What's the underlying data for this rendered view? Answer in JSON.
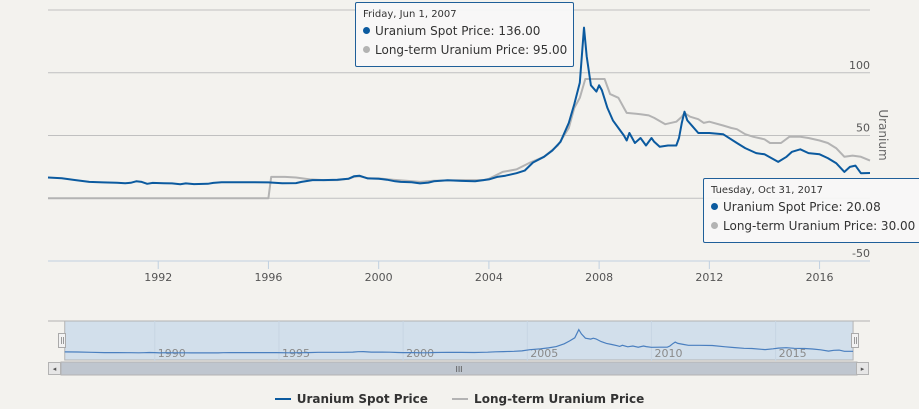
{
  "chart_data": {
    "type": "line",
    "title": "",
    "ylabel": "Uranium",
    "xlabel": "",
    "ylim": [
      -50,
      150
    ],
    "xlim": [
      1988.0,
      2017.83
    ],
    "y_ticks": [
      {
        "value": 100,
        "label": "100"
      },
      {
        "value": 50,
        "label": "50"
      },
      {
        "value": -50,
        "label": "-50"
      }
    ],
    "y_gridlines": [
      150,
      100,
      50,
      0,
      -50
    ],
    "x_ticks": [
      {
        "value": 1992,
        "label": "1992"
      },
      {
        "value": 1996,
        "label": "1996"
      },
      {
        "value": 2000,
        "label": "2000"
      },
      {
        "value": 2004,
        "label": "2004"
      },
      {
        "value": 2008,
        "label": "2008"
      },
      {
        "value": 2012,
        "label": "2012"
      },
      {
        "value": 2016,
        "label": "2016"
      }
    ],
    "grid": true,
    "legend": "bottom-center",
    "series": [
      {
        "name": "Uranium Spot Price",
        "color": "#0b5a9f",
        "points": [
          [
            1988.0,
            16.5
          ],
          [
            1988.5,
            16.0
          ],
          [
            1989.0,
            14.5
          ],
          [
            1989.5,
            13.0
          ],
          [
            1990.0,
            12.6
          ],
          [
            1990.5,
            12.3
          ],
          [
            1990.8,
            12.0
          ],
          [
            1991.0,
            12.3
          ],
          [
            1991.2,
            13.5
          ],
          [
            1991.4,
            13.0
          ],
          [
            1991.6,
            11.5
          ],
          [
            1991.8,
            12.2
          ],
          [
            1992.2,
            12.0
          ],
          [
            1992.5,
            11.8
          ],
          [
            1992.8,
            11.2
          ],
          [
            1993.0,
            11.8
          ],
          [
            1993.3,
            11.3
          ],
          [
            1993.8,
            11.5
          ],
          [
            1994.0,
            12.2
          ],
          [
            1994.3,
            12.8
          ],
          [
            1995.0,
            12.8
          ],
          [
            1995.5,
            12.7
          ],
          [
            1996.0,
            12.6
          ],
          [
            1996.5,
            12.0
          ],
          [
            1997.0,
            12.1
          ],
          [
            1997.2,
            13.0
          ],
          [
            1997.6,
            14.5
          ],
          [
            1998.0,
            14.5
          ],
          [
            1998.5,
            14.7
          ],
          [
            1998.9,
            15.5
          ],
          [
            1999.1,
            17.5
          ],
          [
            1999.3,
            18.0
          ],
          [
            1999.6,
            15.8
          ],
          [
            2000.0,
            15.5
          ],
          [
            2000.3,
            14.8
          ],
          [
            2000.6,
            13.5
          ],
          [
            2000.8,
            13.0
          ],
          [
            2001.2,
            12.8
          ],
          [
            2001.5,
            11.8
          ],
          [
            2001.8,
            12.5
          ],
          [
            2002.0,
            13.5
          ],
          [
            2002.5,
            14.3
          ],
          [
            2003.0,
            13.8
          ],
          [
            2003.5,
            13.5
          ],
          [
            2003.8,
            14.5
          ],
          [
            2004.0,
            15.0
          ],
          [
            2004.3,
            17.0
          ],
          [
            2004.6,
            18.0
          ],
          [
            2005.0,
            20.0
          ],
          [
            2005.3,
            22.0
          ],
          [
            2005.6,
            28.5
          ],
          [
            2006.0,
            33.0
          ],
          [
            2006.3,
            38.0
          ],
          [
            2006.6,
            45.0
          ],
          [
            2006.9,
            60.0
          ],
          [
            2007.1,
            75.0
          ],
          [
            2007.3,
            92.0
          ],
          [
            2007.45,
            136.0
          ],
          [
            2007.55,
            113.0
          ],
          [
            2007.7,
            90.0
          ],
          [
            2007.9,
            85.0
          ],
          [
            2008.0,
            90.0
          ],
          [
            2008.1,
            86.0
          ],
          [
            2008.3,
            72.0
          ],
          [
            2008.5,
            62.0
          ],
          [
            2008.7,
            56.0
          ],
          [
            2008.9,
            50.0
          ],
          [
            2009.0,
            46.0
          ],
          [
            2009.1,
            52.0
          ],
          [
            2009.3,
            44.0
          ],
          [
            2009.5,
            48.0
          ],
          [
            2009.7,
            42.0
          ],
          [
            2009.9,
            48.0
          ],
          [
            2010.0,
            45.0
          ],
          [
            2010.2,
            41.0
          ],
          [
            2010.5,
            42.0
          ],
          [
            2010.8,
            42.0
          ],
          [
            2010.9,
            48.0
          ],
          [
            2011.0,
            60.0
          ],
          [
            2011.1,
            69.0
          ],
          [
            2011.2,
            62.0
          ],
          [
            2011.4,
            57.0
          ],
          [
            2011.6,
            52.0
          ],
          [
            2012.0,
            52.0
          ],
          [
            2012.5,
            51.0
          ],
          [
            2013.0,
            44.0
          ],
          [
            2013.3,
            40.0
          ],
          [
            2013.7,
            36.0
          ],
          [
            2014.0,
            35.0
          ],
          [
            2014.5,
            29.0
          ],
          [
            2014.8,
            33.0
          ],
          [
            2015.0,
            37.0
          ],
          [
            2015.3,
            39.0
          ],
          [
            2015.6,
            36.0
          ],
          [
            2016.0,
            35.0
          ],
          [
            2016.3,
            32.0
          ],
          [
            2016.6,
            28.0
          ],
          [
            2016.9,
            21.0
          ],
          [
            2017.1,
            25.0
          ],
          [
            2017.3,
            26.0
          ],
          [
            2017.5,
            20.0
          ],
          [
            2017.83,
            20.08
          ]
        ]
      },
      {
        "name": "Long-term Uranium Price",
        "color": "#b3b3b3",
        "points": [
          [
            1988.0,
            0.0
          ],
          [
            1996.0,
            0.0
          ],
          [
            1996.1,
            17.0
          ],
          [
            1996.6,
            17.0
          ],
          [
            1997.0,
            16.5
          ],
          [
            1997.5,
            15.0
          ],
          [
            1998.0,
            14.5
          ],
          [
            1998.5,
            14.5
          ],
          [
            1998.9,
            15.5
          ],
          [
            1999.1,
            17.0
          ],
          [
            1999.3,
            17.5
          ],
          [
            1999.6,
            16.0
          ],
          [
            2000.0,
            15.8
          ],
          [
            2000.5,
            14.8
          ],
          [
            2001.0,
            14.0
          ],
          [
            2001.5,
            13.0
          ],
          [
            2002.0,
            14.0
          ],
          [
            2003.0,
            14.5
          ],
          [
            2003.8,
            14.5
          ],
          [
            2004.0,
            15.5
          ],
          [
            2004.5,
            21.0
          ],
          [
            2005.0,
            23.0
          ],
          [
            2005.5,
            28.5
          ],
          [
            2006.0,
            33.0
          ],
          [
            2006.5,
            42.0
          ],
          [
            2006.9,
            56.0
          ],
          [
            2007.1,
            72.0
          ],
          [
            2007.3,
            80.0
          ],
          [
            2007.5,
            95.0
          ],
          [
            2008.2,
            95.0
          ],
          [
            2008.4,
            83.0
          ],
          [
            2008.7,
            80.0
          ],
          [
            2008.9,
            72.0
          ],
          [
            2009.0,
            68.0
          ],
          [
            2009.5,
            67.0
          ],
          [
            2009.8,
            66.0
          ],
          [
            2010.0,
            64.0
          ],
          [
            2010.4,
            59.0
          ],
          [
            2010.8,
            61.0
          ],
          [
            2011.0,
            65.0
          ],
          [
            2011.1,
            68.0
          ],
          [
            2011.3,
            65.0
          ],
          [
            2011.6,
            63.0
          ],
          [
            2011.8,
            60.0
          ],
          [
            2012.0,
            61.0
          ],
          [
            2012.5,
            58.0
          ],
          [
            2012.8,
            56.0
          ],
          [
            2013.0,
            55.0
          ],
          [
            2013.3,
            51.0
          ],
          [
            2013.6,
            49.0
          ],
          [
            2014.0,
            47.0
          ],
          [
            2014.2,
            44.0
          ],
          [
            2014.6,
            44.0
          ],
          [
            2014.9,
            49.0
          ],
          [
            2015.3,
            49.0
          ],
          [
            2015.6,
            48.0
          ],
          [
            2016.0,
            46.0
          ],
          [
            2016.3,
            44.0
          ],
          [
            2016.6,
            40.0
          ],
          [
            2016.9,
            33.0
          ],
          [
            2017.2,
            34.0
          ],
          [
            2017.5,
            33.0
          ],
          [
            2017.83,
            30.0
          ]
        ]
      }
    ],
    "navigator": {
      "x_labels": [
        "1990",
        "1995",
        "2000",
        "2005",
        "2010",
        "2015"
      ],
      "x_label_values": [
        1990,
        1995,
        2000,
        2005,
        2010,
        2015
      ],
      "xlim": [
        1987.9,
        2017.9
      ],
      "selection": [
        1988.0,
        2017.83
      ]
    }
  },
  "tooltips": [
    {
      "date": "Friday, Jun 1, 2007",
      "rows": [
        {
          "label": "Uranium Spot Price: 136.00",
          "color": "#0b5a9f"
        },
        {
          "label": "Long-term Uranium Price: 95.00",
          "color": "#b3b3b3"
        }
      ]
    },
    {
      "date": "Tuesday, Oct 31, 2017",
      "rows": [
        {
          "label": "Uranium Spot Price: 20.08",
          "color": "#0b5a9f"
        },
        {
          "label": "Long-term Uranium Price: 30.00",
          "color": "#b3b3b3"
        }
      ]
    }
  ],
  "legend": {
    "items": [
      {
        "label": "Uranium Spot Price",
        "color": "#0b5a9f"
      },
      {
        "label": "Long-term Uranium Price",
        "color": "#b3b3b3"
      }
    ]
  },
  "scrollbar": {
    "left_arrow": "◂",
    "right_arrow": "▸",
    "grip": "III"
  }
}
